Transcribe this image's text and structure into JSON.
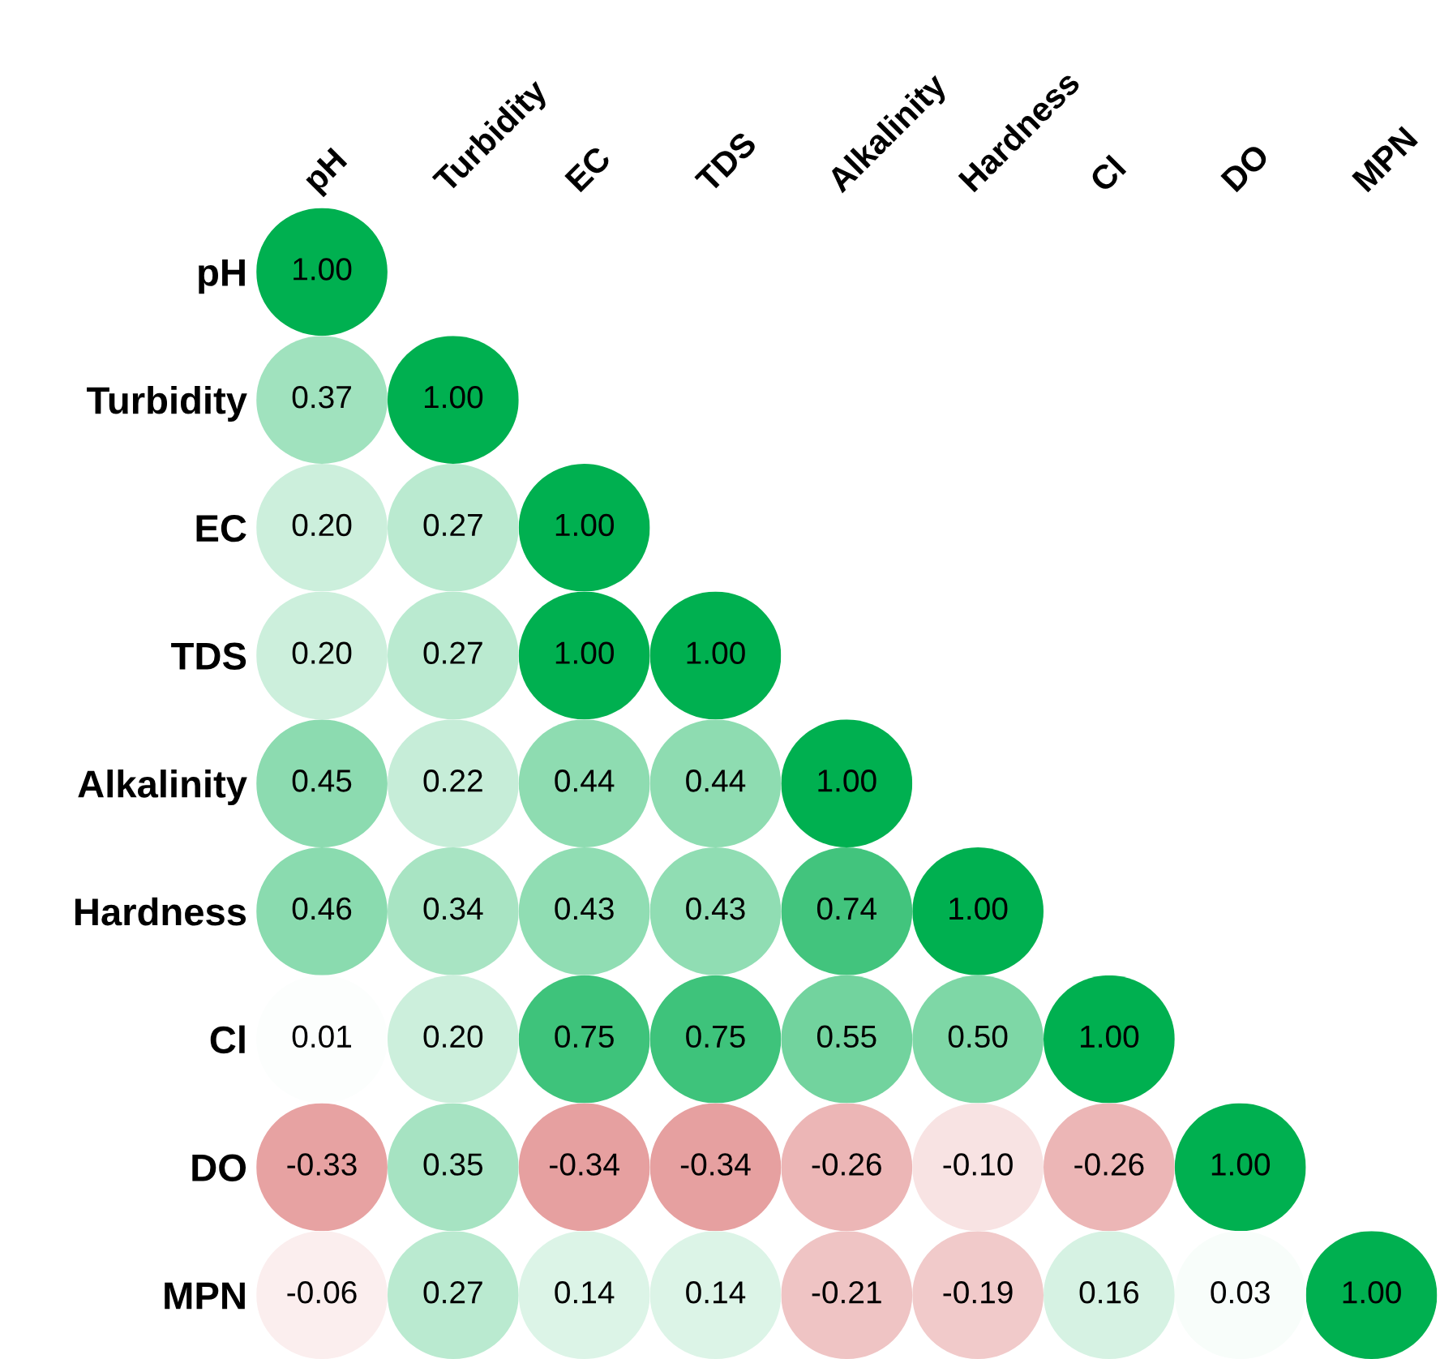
{
  "chart_data": {
    "type": "heatmap",
    "categories": [
      "pH",
      "Turbidity",
      "EC",
      "TDS",
      "Alkalinity",
      "Hardness",
      "Cl",
      "DO",
      "MPN"
    ],
    "y_categories": [
      "pH",
      "Turbidity",
      "EC",
      "TDS",
      "Alkalinity",
      "Hardness",
      "Cl",
      "DO",
      "MPN"
    ],
    "cells": [
      [
        1.0,
        null,
        null,
        null,
        null,
        null,
        null,
        null,
        null
      ],
      [
        0.37,
        1.0,
        null,
        null,
        null,
        null,
        null,
        null,
        null
      ],
      [
        0.2,
        0.27,
        1.0,
        null,
        null,
        null,
        null,
        null,
        null
      ],
      [
        0.2,
        0.27,
        1.0,
        1.0,
        null,
        null,
        null,
        null,
        null
      ],
      [
        0.45,
        0.22,
        0.44,
        0.44,
        1.0,
        null,
        null,
        null,
        null
      ],
      [
        0.46,
        0.34,
        0.43,
        0.43,
        0.74,
        1.0,
        null,
        null,
        null
      ],
      [
        0.01,
        0.2,
        0.75,
        0.75,
        0.55,
        0.5,
        1.0,
        null,
        null
      ],
      [
        -0.33,
        0.35,
        -0.34,
        -0.34,
        -0.26,
        -0.1,
        -0.26,
        1.0,
        null
      ],
      [
        -0.06,
        0.27,
        0.14,
        0.14,
        -0.21,
        -0.19,
        0.16,
        0.03,
        1.0
      ]
    ],
    "cell_labels": [
      [
        "1.00",
        null,
        null,
        null,
        null,
        null,
        null,
        null,
        null
      ],
      [
        "0.37",
        "1.00",
        null,
        null,
        null,
        null,
        null,
        null,
        null
      ],
      [
        "0.20",
        "0.27",
        "1.00",
        null,
        null,
        null,
        null,
        null,
        null
      ],
      [
        "0.20",
        "0.27",
        "1.00",
        "1.00",
        null,
        null,
        null,
        null,
        null
      ],
      [
        "0.45",
        "0.22",
        "0.44",
        "0.44",
        "1.00",
        null,
        null,
        null,
        null
      ],
      [
        "0.46",
        "0.34",
        "0.43",
        "0.43",
        "0.74",
        "1.00",
        null,
        null,
        null
      ],
      [
        "0.01",
        "0.20",
        "0.75",
        "0.75",
        "0.55",
        "0.50",
        "1.00",
        null,
        null
      ],
      [
        "-0.33",
        "0.35",
        "-0.34",
        "-0.34",
        "-0.26",
        "-0.10",
        "-0.26",
        "1.00",
        null
      ],
      [
        "-0.06",
        "0.27",
        "0.14",
        "0.14",
        "-0.21",
        "-0.19",
        "0.16",
        "0.03",
        "1.00"
      ]
    ],
    "grid": false,
    "legend": false
  }
}
